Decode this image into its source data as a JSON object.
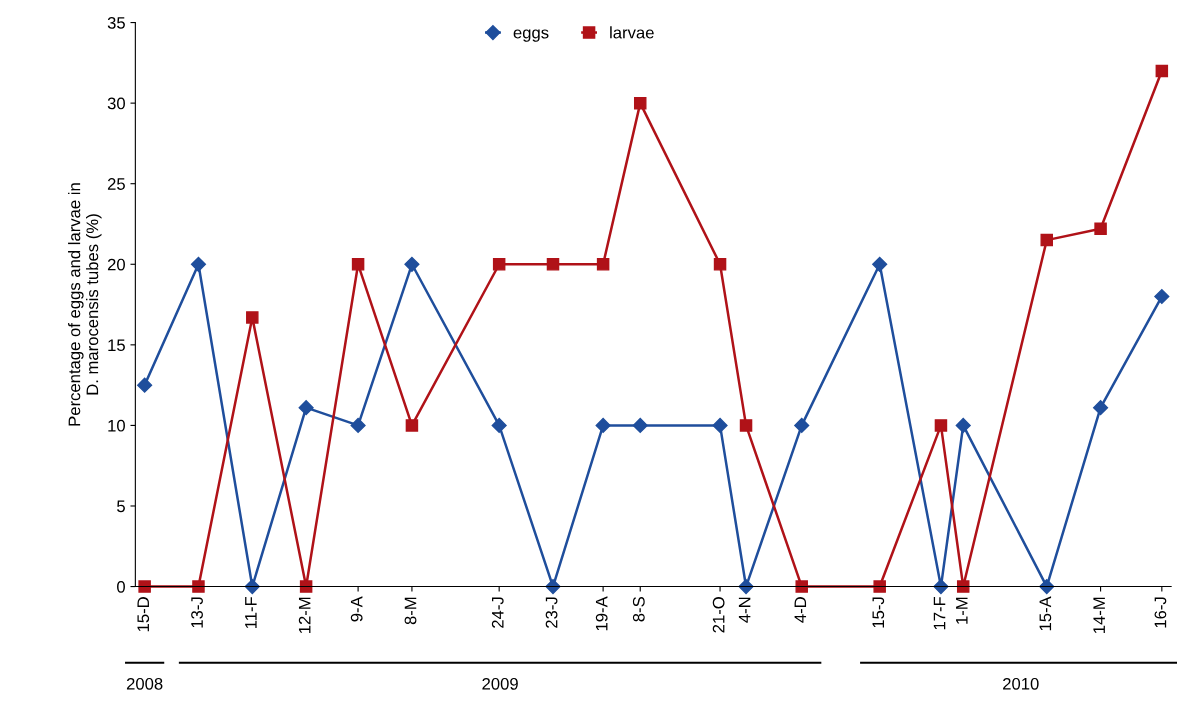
{
  "chart_data": {
    "type": "line",
    "ylabel": "Percentage of eggs and larvae in\nD. marocensis tubes (%)",
    "x": [
      "2008-12-15",
      "2009-01-13",
      "2009-02-11",
      "2009-03-12",
      "2009-04-09",
      "2009-05-08",
      "2009-06-24",
      "2009-07-23",
      "2009-08-19",
      "2009-09-08",
      "2009-10-21",
      "2009-11-04",
      "2009-12-04",
      "2010-01-15",
      "2010-02-17",
      "2010-03-01",
      "2010-04-15",
      "2010-05-14",
      "2010-06-16"
    ],
    "series": [
      {
        "name": "eggs",
        "color": "#1f4e9c",
        "marker": "diamond",
        "values": [
          12.5,
          20,
          0,
          11.1,
          10,
          20,
          10,
          0,
          10,
          10,
          10,
          0,
          10,
          20,
          0,
          10,
          0,
          11.1,
          18
        ]
      },
      {
        "name": "larvae",
        "color": "#b01218",
        "marker": "square",
        "values": [
          0,
          0,
          16.7,
          0,
          20,
          10,
          20,
          20,
          20,
          30,
          20,
          10,
          0,
          0,
          10,
          0,
          21.5,
          22.2,
          32
        ]
      }
    ],
    "xlim": [
      "2008-12-10",
      "2010-06-21"
    ],
    "xticks": [
      {
        "value": "2008-12-15",
        "label": "15-D"
      },
      {
        "value": "2009-01-13",
        "label": "13-J"
      },
      {
        "value": "2009-02-11",
        "label": "11-F"
      },
      {
        "value": "2009-03-12",
        "label": "12-M"
      },
      {
        "value": "2009-04-09",
        "label": "9-A"
      },
      {
        "value": "2009-05-08",
        "label": "8-M"
      },
      {
        "value": "2009-06-24",
        "label": "24-J"
      },
      {
        "value": "2009-07-23",
        "label": "23-J"
      },
      {
        "value": "2009-08-19",
        "label": "19-A"
      },
      {
        "value": "2009-09-08",
        "label": "8-S"
      },
      {
        "value": "2009-10-21",
        "label": "21-O"
      },
      {
        "value": "2009-11-04",
        "label": "4-N"
      },
      {
        "value": "2009-12-04",
        "label": "4-D"
      },
      {
        "value": "2010-01-15",
        "label": "15-J"
      },
      {
        "value": "2010-02-17",
        "label": "17-F"
      },
      {
        "value": "2010-03-01",
        "label": "1-M"
      },
      {
        "value": "2010-04-15",
        "label": "15-A"
      },
      {
        "value": "2010-05-14",
        "label": "14-M"
      },
      {
        "value": "2010-06-16",
        "label": "16-J"
      }
    ],
    "ylim": [
      0,
      35
    ],
    "yticks": [
      0,
      5,
      10,
      15,
      20,
      25,
      30,
      35
    ],
    "annotations": [
      "2008",
      "2009",
      "2010"
    ],
    "legend": "top",
    "grid": false,
    "line_style": "solid"
  }
}
